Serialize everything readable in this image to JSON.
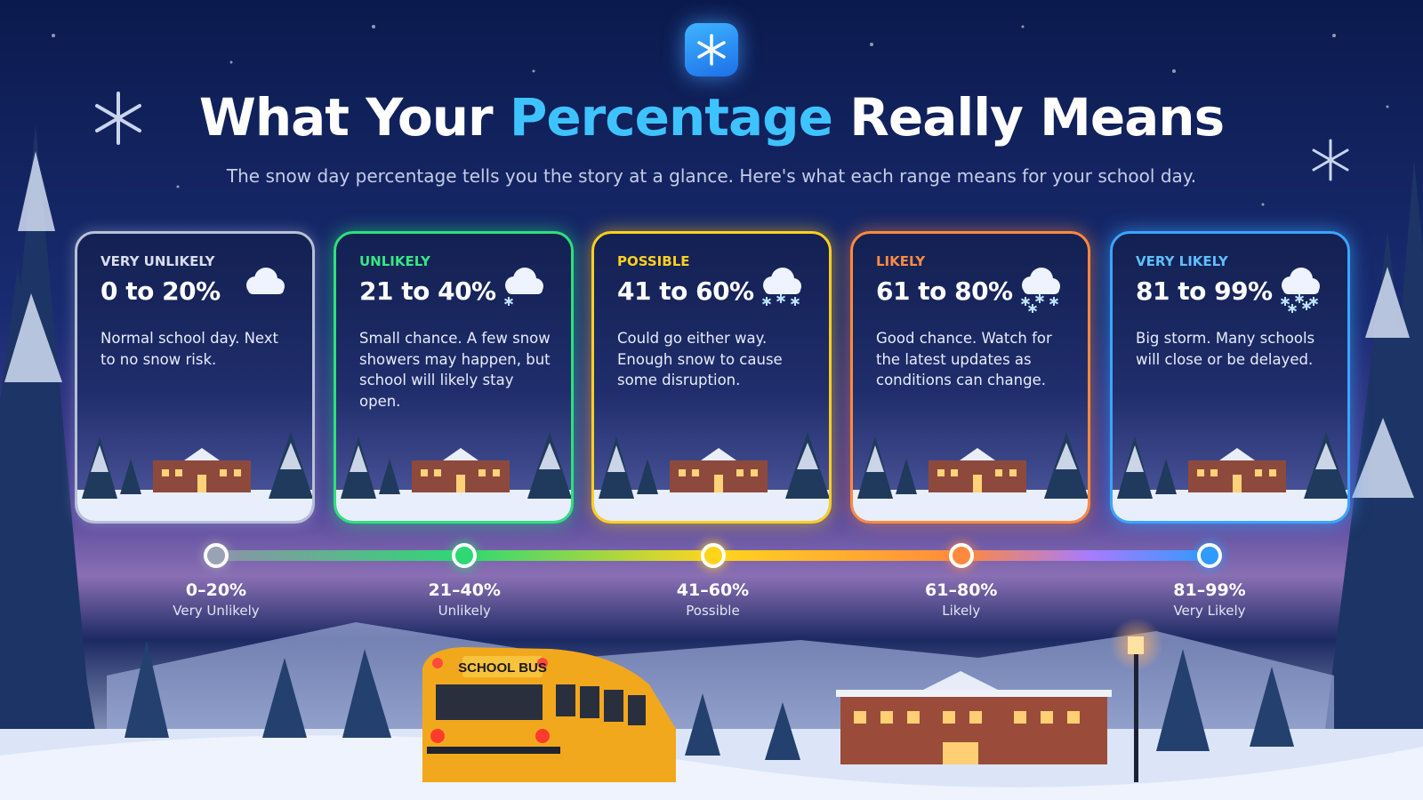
{
  "header": {
    "title_parts": [
      "What Your",
      "Percentage",
      "Really Means"
    ],
    "subtitle": "The snow day percentage tells you the story at a glance. Here's what each range means for your school day."
  },
  "cards": [
    {
      "label": "VERY UNLIKELY",
      "range": "0 to 20%",
      "description": "Normal school day. Next to no snow risk."
    },
    {
      "label": "UNLIKELY",
      "range": "21 to 40%",
      "description": "Small chance. A few snow showers may happen, but school will likely stay open."
    },
    {
      "label": "POSSIBLE",
      "range": "41 to 60%",
      "description": "Could go either way. Enough snow to cause some disruption."
    },
    {
      "label": "LIKELY",
      "range": "61 to 80%",
      "description": "Good chance. Watch for the latest updates as conditions can change."
    },
    {
      "label": "VERY LIKELY",
      "range": "81 to 99%",
      "description": "Big storm. Many schools will close or be delayed."
    }
  ],
  "scale": [
    {
      "range": "0–20%",
      "label": "Very Unlikely"
    },
    {
      "range": "21–40%",
      "label": "Unlikely"
    },
    {
      "range": "41–60%",
      "label": "Possible"
    },
    {
      "range": "61–80%",
      "label": "Likely"
    },
    {
      "range": "81–99%",
      "label": "Very Likely"
    }
  ],
  "scene": {
    "bus_sign": "SCHOOL BUS"
  }
}
